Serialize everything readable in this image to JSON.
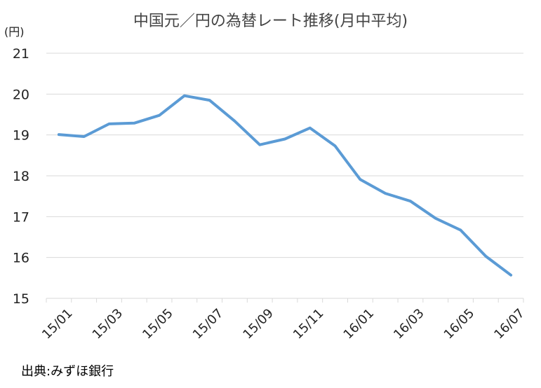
{
  "chart_data": {
    "type": "line",
    "title": "中国元／円の為替レート推移(月中平均)",
    "unit_label": "(円)",
    "source": "出典:みずほ銀行",
    "x": [
      "15/01",
      "15/02",
      "15/03",
      "15/04",
      "15/05",
      "15/06",
      "15/07",
      "15/08",
      "15/09",
      "15/10",
      "15/11",
      "15/12",
      "16/01",
      "16/02",
      "16/03",
      "16/04",
      "16/05",
      "16/06",
      "16/07"
    ],
    "x_tick_labels": [
      "15/01",
      "15/03",
      "15/05",
      "15/07",
      "15/09",
      "15/11",
      "16/01",
      "16/03",
      "16/05",
      "16/07"
    ],
    "series": [
      {
        "values": [
          19.01,
          18.96,
          19.27,
          19.29,
          19.48,
          19.96,
          19.85,
          19.34,
          18.76,
          18.9,
          19.17,
          18.73,
          17.91,
          17.57,
          17.38,
          16.96,
          16.67,
          16.03,
          15.57
        ]
      }
    ],
    "ylim": [
      15,
      21
    ],
    "yticks": [
      15,
      16,
      17,
      18,
      19,
      20,
      21
    ],
    "grid": true,
    "line_color": "#5B9BD5",
    "grid_color": "#D9D9D9"
  }
}
